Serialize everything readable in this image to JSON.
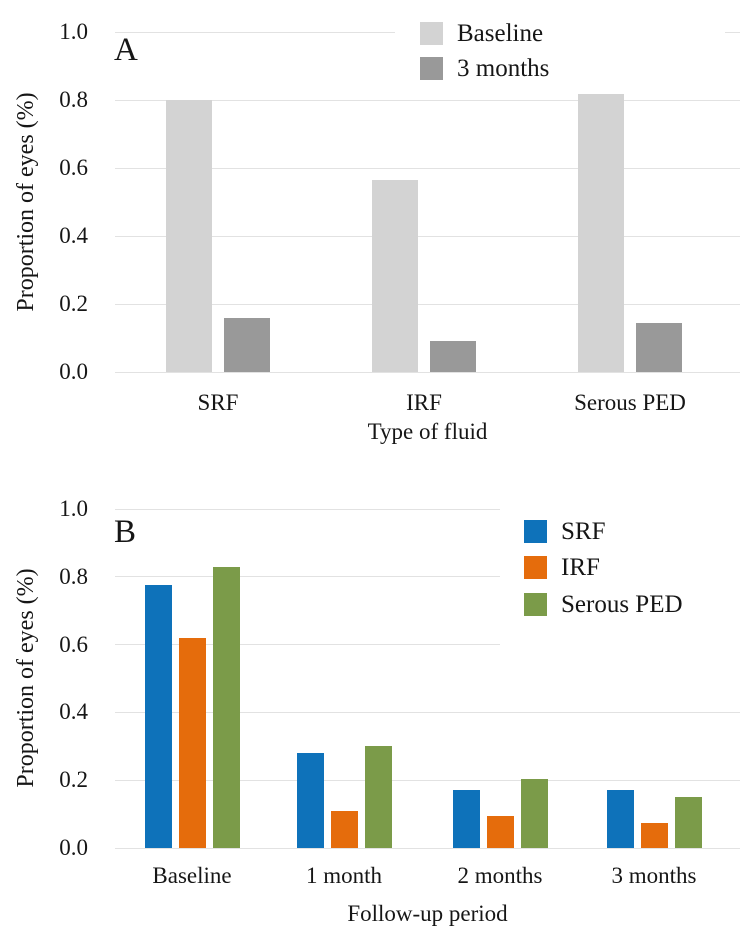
{
  "figure": {
    "background": "#ffffff",
    "gridline_color": "#e2e2e2",
    "text_color": "#161616"
  },
  "chart_data": [
    {
      "id": "A",
      "type": "bar",
      "panel_label": "A",
      "xlabel": "Type of fluid",
      "ylabel": "Proportion of eyes (%)",
      "ylim": [
        0.0,
        1.0
      ],
      "ytick_step": 0.2,
      "ytick_labels": [
        "0.0",
        "0.2",
        "0.4",
        "0.6",
        "0.8",
        "1.0"
      ],
      "grid": true,
      "legend_position": "top-right-inside",
      "categories": [
        "SRF",
        "IRF",
        "Serous PED"
      ],
      "series": [
        {
          "name": "Baseline",
          "color": "#d3d3d3",
          "values": [
            0.8,
            0.565,
            0.83
          ]
        },
        {
          "name": "3 months",
          "color": "#999999",
          "values": [
            0.16,
            0.09,
            0.145
          ]
        }
      ]
    },
    {
      "id": "B",
      "type": "bar",
      "panel_label": "B",
      "xlabel": "Follow-up period",
      "ylabel": "Proportion of eyes (%)",
      "ylim": [
        0.0,
        1.0
      ],
      "ytick_step": 0.2,
      "ytick_labels": [
        "0.0",
        "0.2",
        "0.4",
        "0.6",
        "0.8",
        "1.0"
      ],
      "grid": true,
      "legend_position": "top-right-inside",
      "categories": [
        "Baseline",
        "1 month",
        "2 months",
        "3 months"
      ],
      "series": [
        {
          "name": "SRF",
          "color": "#0e72ba",
          "values": [
            0.775,
            0.28,
            0.17,
            0.17
          ]
        },
        {
          "name": "IRF",
          "color": "#e56c0c",
          "values": [
            0.62,
            0.11,
            0.095,
            0.075
          ]
        },
        {
          "name": "Serous PED",
          "color": "#7b9b49",
          "values": [
            0.83,
            0.3,
            0.205,
            0.15
          ]
        }
      ]
    }
  ]
}
